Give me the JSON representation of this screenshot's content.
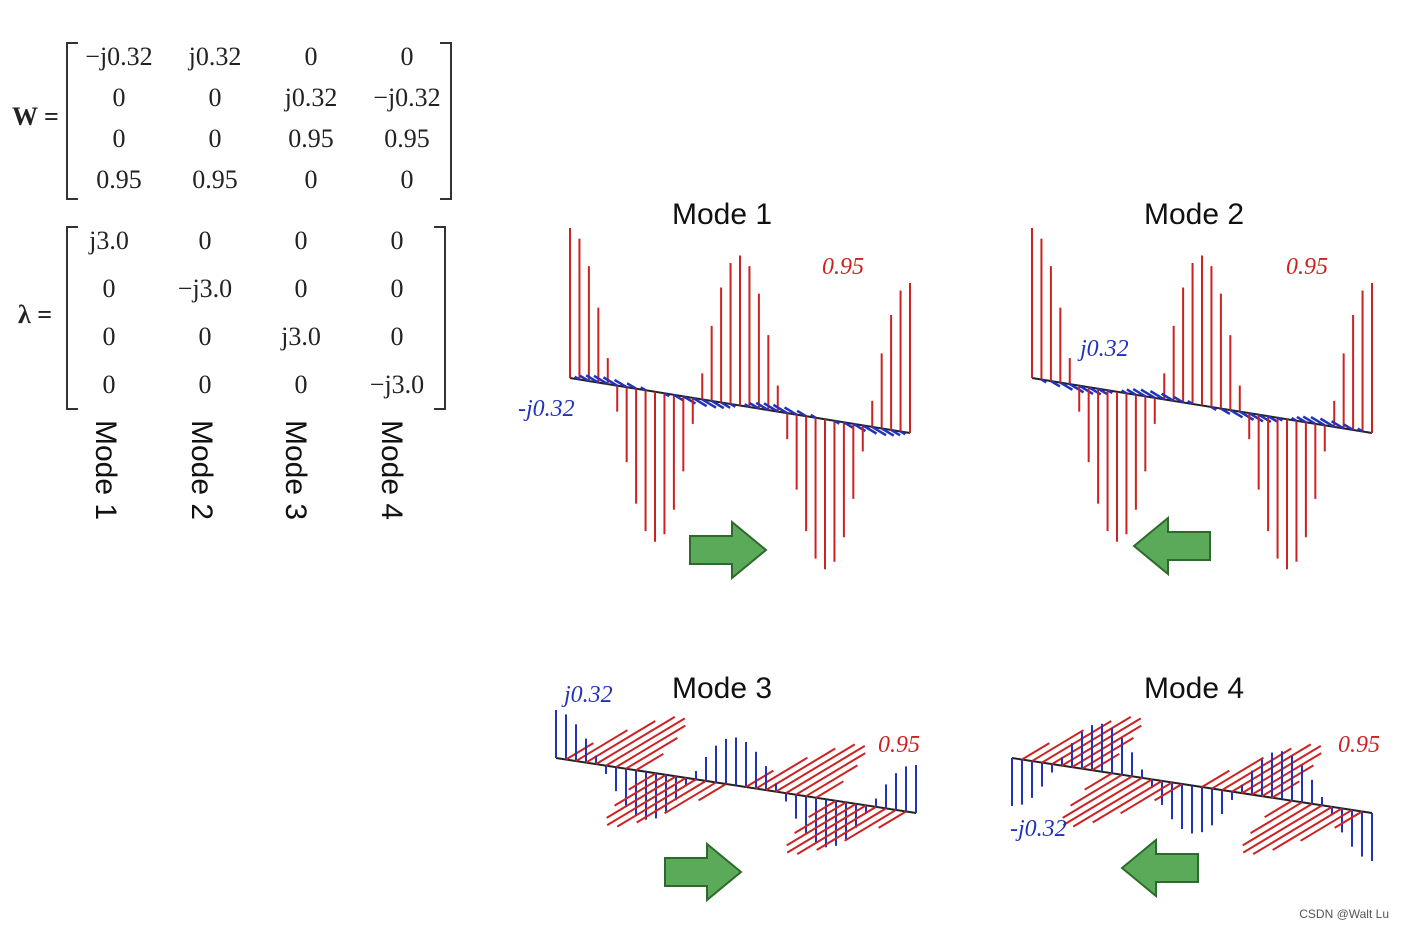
{
  "w_label": "W =",
  "lambda_label": "λ =",
  "w_rows": [
    [
      "−j0.32",
      "j0.32",
      "0",
      "0"
    ],
    [
      "0",
      "0",
      "j0.32",
      "−j0.32"
    ],
    [
      "0",
      "0",
      "0.95",
      "0.95"
    ],
    [
      "0.95",
      "0.95",
      "0",
      "0"
    ]
  ],
  "lambda_rows": [
    [
      "j3.0",
      "0",
      "0",
      "0"
    ],
    [
      "0",
      "−j3.0",
      "0",
      "0"
    ],
    [
      "0",
      "0",
      "j3.0",
      "0"
    ],
    [
      "0",
      "0",
      "0",
      "−j3.0"
    ]
  ],
  "mode_columns": [
    "Mode 1",
    "Mode 2",
    "Mode 3",
    "Mode 4"
  ],
  "panels": [
    {
      "title": "Mode 1",
      "red_label": "0.95",
      "blue_label": "-j0.32",
      "arrow": "right"
    },
    {
      "title": "Mode 2",
      "red_label": "0.95",
      "blue_label": "j0.32",
      "arrow": "left"
    },
    {
      "title": "Mode 3",
      "red_label": "0.95",
      "blue_label": "j0.32",
      "arrow": "right"
    },
    {
      "title": "Mode 4",
      "red_label": "0.95",
      "blue_label": "-j0.32",
      "arrow": "left"
    }
  ],
  "credit": "CSDN @Walt Lu",
  "colors": {
    "red": "#cc2222",
    "blue": "#2233bb",
    "arrow_fill": "#5aaa5a"
  }
}
